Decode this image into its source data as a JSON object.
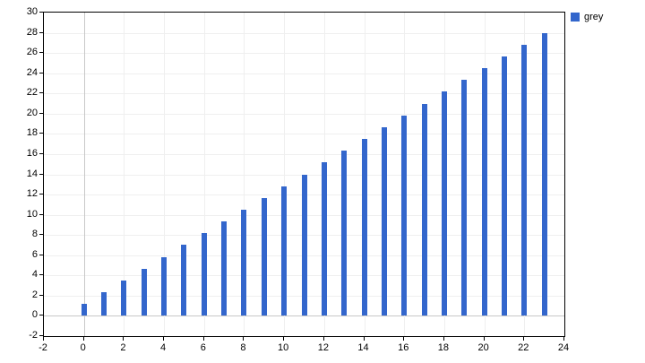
{
  "chart_data": {
    "type": "bar",
    "x": [
      0,
      1,
      2,
      3,
      4,
      5,
      6,
      7,
      8,
      9,
      10,
      11,
      12,
      13,
      14,
      15,
      16,
      17,
      18,
      19,
      20,
      21,
      22,
      23
    ],
    "series": [
      {
        "name": "grey",
        "values": [
          1.17,
          2.33,
          3.5,
          4.67,
          5.83,
          7,
          8.17,
          9.33,
          10.5,
          11.67,
          12.83,
          14,
          15.17,
          16.33,
          17.5,
          18.67,
          19.83,
          21,
          22.17,
          23.33,
          24.5,
          25.67,
          26.83,
          28
        ]
      }
    ],
    "xlabel": "",
    "ylabel": "",
    "xlim": [
      -2,
      24
    ],
    "ylim": [
      -2,
      30
    ],
    "x_ticks": [
      -2,
      0,
      2,
      4,
      6,
      8,
      10,
      12,
      14,
      16,
      18,
      20,
      22,
      24
    ],
    "y_ticks": [
      -2,
      0,
      2,
      4,
      6,
      8,
      10,
      12,
      14,
      16,
      18,
      20,
      22,
      24,
      26,
      28,
      30
    ],
    "grid": true,
    "legend": {
      "position": "top-right",
      "entries": [
        {
          "label": "grey",
          "color": "#3366CC"
        }
      ]
    },
    "colors": {
      "bar": "#3366CC",
      "gridline": "#EFEFEF",
      "zero_line": "#C8C8C8",
      "axis_border": "#000000",
      "tick": "#000000",
      "text": "#000000",
      "background": "#FFFFFF"
    }
  }
}
